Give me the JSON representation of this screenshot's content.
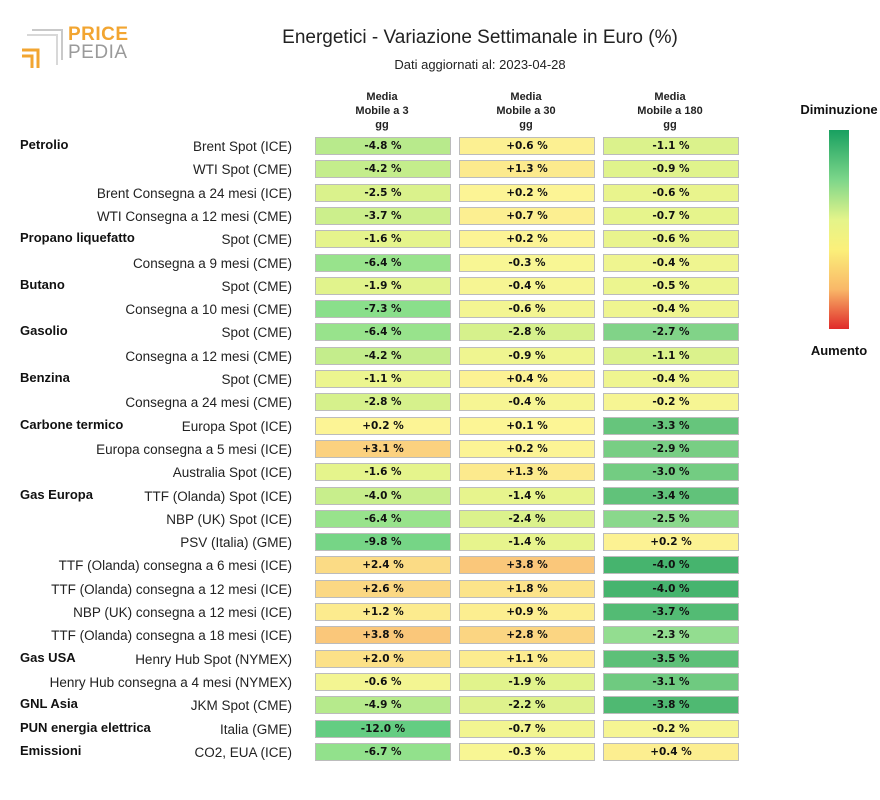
{
  "logo": {
    "word1": "PRICE",
    "word2": "PEDIA"
  },
  "chart_data": {
    "type": "table",
    "title": "Energetici - Variazione Settimanale in Euro (%)",
    "subtitle": "Dati aggiornati al: 2023-04-28",
    "columns": [
      {
        "l1": "Media",
        "l2": "Mobile a 3",
        "l3": "gg"
      },
      {
        "l1": "Media",
        "l2": "Mobile a 30",
        "l3": "gg"
      },
      {
        "l1": "Media",
        "l2": "Mobile a 180",
        "l3": "gg"
      }
    ],
    "legend": {
      "top": "Diminuzione",
      "bottom": "Aumento"
    },
    "rows": [
      {
        "group": "Petrolio",
        "label": "Brent Spot (ICE)",
        "values": [
          -4.8,
          0.6,
          -1.1
        ],
        "texts": [
          "-4.8 %",
          "+0.6 %",
          "-1.1 %"
        ]
      },
      {
        "group": "",
        "label": "WTI Spot (CME)",
        "values": [
          -4.2,
          1.3,
          -0.9
        ],
        "texts": [
          "-4.2 %",
          "+1.3 %",
          "-0.9 %"
        ]
      },
      {
        "group": "",
        "label": "Brent Consegna a 24 mesi (ICE)",
        "values": [
          -2.5,
          0.2,
          -0.6
        ],
        "texts": [
          "-2.5 %",
          "+0.2 %",
          "-0.6 %"
        ]
      },
      {
        "group": "",
        "label": "WTI Consegna a 12 mesi (CME)",
        "values": [
          -3.7,
          0.7,
          -0.7
        ],
        "texts": [
          "-3.7 %",
          "+0.7 %",
          "-0.7 %"
        ]
      },
      {
        "group": "Propano liquefatto",
        "label": "Spot (CME)",
        "values": [
          -1.6,
          0.2,
          -0.6
        ],
        "texts": [
          "-1.6 %",
          "+0.2 %",
          "-0.6 %"
        ]
      },
      {
        "group": "",
        "label": "Consegna a 9 mesi (CME)",
        "values": [
          -6.4,
          -0.3,
          -0.4
        ],
        "texts": [
          "-6.4 %",
          "-0.3 %",
          "-0.4 %"
        ]
      },
      {
        "group": "Butano",
        "label": "Spot (CME)",
        "values": [
          -1.9,
          -0.4,
          -0.5
        ],
        "texts": [
          "-1.9 %",
          "-0.4 %",
          "-0.5 %"
        ]
      },
      {
        "group": "",
        "label": "Consegna a 10 mesi (CME)",
        "values": [
          -7.3,
          -0.6,
          -0.4
        ],
        "texts": [
          "-7.3 %",
          "-0.6 %",
          "-0.4 %"
        ]
      },
      {
        "group": "Gasolio",
        "label": "Spot (CME)",
        "values": [
          -6.4,
          -2.8,
          -2.7
        ],
        "texts": [
          "-6.4 %",
          "-2.8 %",
          "-2.7 %"
        ]
      },
      {
        "group": "",
        "label": "Consegna a 12 mesi (CME)",
        "values": [
          -4.2,
          -0.9,
          -1.1
        ],
        "texts": [
          "-4.2 %",
          "-0.9 %",
          "-1.1 %"
        ]
      },
      {
        "group": "Benzina",
        "label": "Spot (CME)",
        "values": [
          -1.1,
          0.4,
          -0.4
        ],
        "texts": [
          "-1.1 %",
          "+0.4 %",
          "-0.4 %"
        ]
      },
      {
        "group": "",
        "label": "Consegna a 24 mesi (CME)",
        "values": [
          -2.8,
          -0.4,
          -0.2
        ],
        "texts": [
          "-2.8 %",
          "-0.4 %",
          "-0.2 %"
        ]
      },
      {
        "group": "Carbone termico",
        "label": "Europa Spot (ICE)",
        "values": [
          0.2,
          0.1,
          -3.3
        ],
        "texts": [
          "+0.2 %",
          "+0.1 %",
          "-3.3 %"
        ]
      },
      {
        "group": "",
        "label": "Europa consegna a 5 mesi (ICE)",
        "values": [
          3.1,
          0.2,
          -2.9
        ],
        "texts": [
          "+3.1 %",
          "+0.2 %",
          "-2.9 %"
        ]
      },
      {
        "group": "",
        "label": "Australia Spot (ICE)",
        "values": [
          -1.6,
          1.3,
          -3.0
        ],
        "texts": [
          "-1.6 %",
          "+1.3 %",
          "-3.0 %"
        ]
      },
      {
        "group": "Gas Europa",
        "label": "TTF (Olanda) Spot (ICE)",
        "values": [
          -4.0,
          -1.4,
          -3.4
        ],
        "texts": [
          "-4.0 %",
          "-1.4 %",
          "-3.4 %"
        ]
      },
      {
        "group": "",
        "label": "NBP (UK) Spot (ICE)",
        "values": [
          -6.4,
          -2.4,
          -2.5
        ],
        "texts": [
          "-6.4 %",
          "-2.4 %",
          "-2.5 %"
        ]
      },
      {
        "group": "",
        "label": "PSV (Italia) (GME)",
        "values": [
          -9.8,
          -1.4,
          0.2
        ],
        "texts": [
          "-9.8 %",
          "-1.4 %",
          "+0.2 %"
        ]
      },
      {
        "group": "",
        "label": "TTF (Olanda) consegna a 6 mesi (ICE)",
        "values": [
          2.4,
          3.8,
          -4.0
        ],
        "texts": [
          "+2.4 %",
          "+3.8 %",
          "-4.0 %"
        ]
      },
      {
        "group": "",
        "label": "TTF (Olanda) consegna a 12 mesi (ICE)",
        "values": [
          2.6,
          1.8,
          -4.0
        ],
        "texts": [
          "+2.6 %",
          "+1.8 %",
          "-4.0 %"
        ]
      },
      {
        "group": "",
        "label": "NBP (UK) consegna a 12 mesi (ICE)",
        "values": [
          1.2,
          0.9,
          -3.7
        ],
        "texts": [
          "+1.2 %",
          "+0.9 %",
          "-3.7 %"
        ]
      },
      {
        "group": "",
        "label": "TTF (Olanda) consegna a 18 mesi (ICE)",
        "values": [
          3.8,
          2.8,
          -2.3
        ],
        "texts": [
          "+3.8 %",
          "+2.8 %",
          "-2.3 %"
        ]
      },
      {
        "group": "Gas USA",
        "label": "Henry Hub Spot (NYMEX)",
        "values": [
          2.0,
          1.1,
          -3.5
        ],
        "texts": [
          "+2.0 %",
          "+1.1 %",
          "-3.5 %"
        ]
      },
      {
        "group": "",
        "label": "Henry Hub consegna a 4 mesi (NYMEX)",
        "values": [
          -0.6,
          -1.9,
          -3.1
        ],
        "texts": [
          "-0.6 %",
          "-1.9 %",
          "-3.1 %"
        ]
      },
      {
        "group": "GNL Asia",
        "label": "JKM Spot (CME)",
        "values": [
          -4.9,
          -2.2,
          -3.8
        ],
        "texts": [
          "-4.9 %",
          "-2.2 %",
          "-3.8 %"
        ]
      },
      {
        "group": "PUN energia elettrica",
        "label": "Italia (GME)",
        "values": [
          -12.0,
          -0.7,
          -0.2
        ],
        "texts": [
          "-12.0 %",
          "-0.7 %",
          "-0.2 %"
        ]
      },
      {
        "group": "Emissioni",
        "label": "CO2, EUA (ICE)",
        "values": [
          -6.7,
          -0.3,
          0.4
        ],
        "texts": [
          "-6.7 %",
          "-0.3 %",
          "+0.4 %"
        ]
      }
    ]
  }
}
